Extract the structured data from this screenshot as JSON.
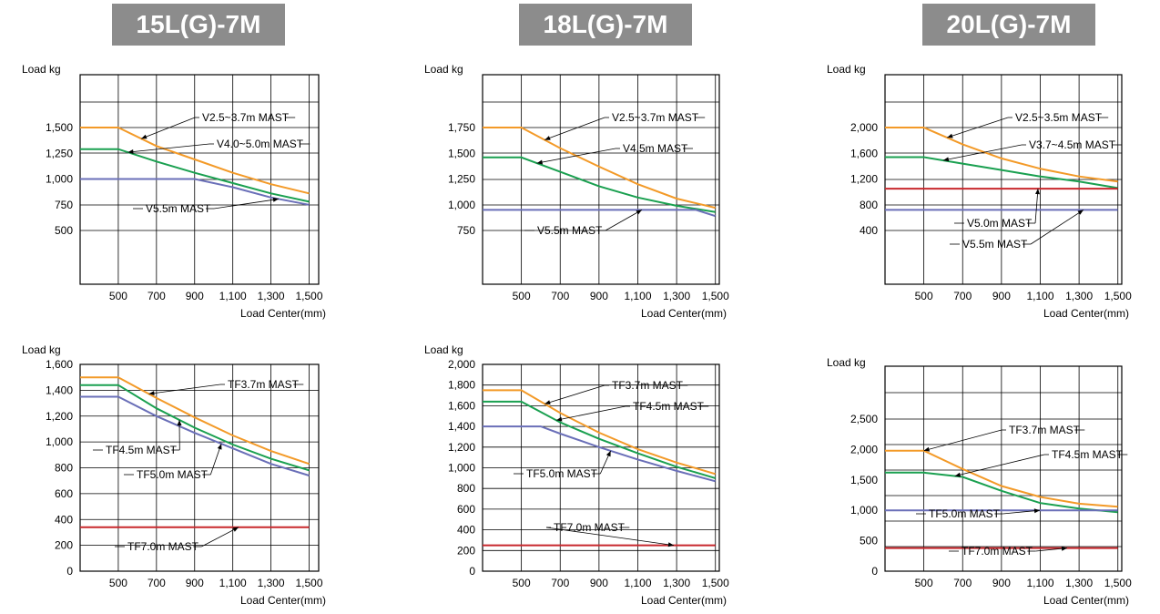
{
  "models": [
    "15L(G)-7M",
    "18L(G)-7M",
    "20L(G)-7M"
  ],
  "colors": {
    "orange": "#f39a28",
    "green": "#1aa050",
    "blue": "#6a6fb8",
    "red": "#c8282d",
    "grid": "#000000",
    "tab": "#8c8c8c"
  },
  "chart_data": [
    {
      "model": "15L(G)-7M",
      "type": "line",
      "ylabel": "Load   kg",
      "xlabel": "Load Center(mm)",
      "x_ticks": [
        "500",
        "700",
        "900",
        "1,100",
        "1,300",
        "1,500"
      ],
      "y_ticks": [
        {
          "v": 1500,
          "label": "1,500"
        },
        {
          "v": 1250,
          "label": "1,250"
        },
        {
          "v": 1000,
          "label": "1,000"
        },
        {
          "v": 750,
          "label": "750"
        },
        {
          "v": 500,
          "label": "500"
        }
      ],
      "series": [
        {
          "name": "V2.5~3.7m MAST",
          "color": "orange",
          "points": [
            [
              300,
              1500
            ],
            [
              500,
              1500
            ],
            [
              700,
              1320
            ],
            [
              900,
              1190
            ],
            [
              1100,
              1060
            ],
            [
              1300,
              950
            ],
            [
              1500,
              860
            ]
          ]
        },
        {
          "name": "V4.0~5.0m MAST",
          "color": "green",
          "points": [
            [
              300,
              1290
            ],
            [
              500,
              1290
            ],
            [
              700,
              1170
            ],
            [
              900,
              1060
            ],
            [
              1100,
              960
            ],
            [
              1300,
              860
            ],
            [
              1500,
              780
            ]
          ]
        },
        {
          "name": "V5.5m MAST",
          "color": "blue",
          "points": [
            [
              300,
              1000
            ],
            [
              900,
              1000
            ],
            [
              1100,
              920
            ],
            [
              1300,
              820
            ],
            [
              1500,
              750
            ]
          ]
        }
      ]
    },
    {
      "model": "18L(G)-7M",
      "type": "line",
      "ylabel": "Load   kg",
      "xlabel": "Load Center(mm)",
      "x_ticks": [
        "500",
        "700",
        "900",
        "1,100",
        "1,300",
        "1,500"
      ],
      "y_ticks": [
        {
          "v": 1750,
          "label": "1,750"
        },
        {
          "v": 1500,
          "label": "1,500"
        },
        {
          "v": 1250,
          "label": "1,250"
        },
        {
          "v": 1000,
          "label": "1,000"
        },
        {
          "v": 750,
          "label": "750"
        }
      ],
      "series": [
        {
          "name": "V2.5~3.7m MAST",
          "color": "orange",
          "points": [
            [
              300,
              1750
            ],
            [
              500,
              1750
            ],
            [
              700,
              1550
            ],
            [
              900,
              1370
            ],
            [
              1100,
              1200
            ],
            [
              1300,
              1060
            ],
            [
              1500,
              970
            ]
          ]
        },
        {
          "name": "V4.5m MAST",
          "color": "green",
          "points": [
            [
              300,
              1460
            ],
            [
              500,
              1460
            ],
            [
              700,
              1320
            ],
            [
              900,
              1180
            ],
            [
              1100,
              1070
            ],
            [
              1300,
              990
            ],
            [
              1500,
              930
            ]
          ]
        },
        {
          "name": "V5.5m MAST",
          "color": "blue",
          "points": [
            [
              300,
              950
            ],
            [
              1400,
              950
            ],
            [
              1500,
              890
            ]
          ]
        }
      ]
    },
    {
      "model": "20L(G)-7M",
      "type": "line",
      "ylabel": "Load   kg",
      "xlabel": "Load Center(mm)",
      "x_ticks": [
        "500",
        "700",
        "900",
        "1,100",
        "1,300",
        "1,500"
      ],
      "y_ticks": [
        {
          "v": 2000,
          "label": "2,000"
        },
        {
          "v": 1600,
          "label": "1,600"
        },
        {
          "v": 1200,
          "label": "1,200"
        },
        {
          "v": 800,
          "label": "800"
        },
        {
          "v": 400,
          "label": "400"
        }
      ],
      "series": [
        {
          "name": "V2.5~3.5m MAST",
          "color": "orange",
          "points": [
            [
              300,
              2000
            ],
            [
              500,
              2000
            ],
            [
              700,
              1740
            ],
            [
              900,
              1520
            ],
            [
              1100,
              1360
            ],
            [
              1300,
              1240
            ],
            [
              1500,
              1160
            ]
          ]
        },
        {
          "name": "V3.7~4.5m MAST",
          "color": "green",
          "points": [
            [
              300,
              1540
            ],
            [
              500,
              1540
            ],
            [
              700,
              1440
            ],
            [
              900,
              1340
            ],
            [
              1100,
              1240
            ],
            [
              1300,
              1160
            ],
            [
              1500,
              1060
            ]
          ]
        },
        {
          "name": "V5.0m MAST",
          "color": "red",
          "points": [
            [
              300,
              1050
            ],
            [
              1500,
              1050
            ]
          ]
        },
        {
          "name": "V5.5m MAST",
          "color": "blue",
          "points": [
            [
              300,
              720
            ],
            [
              1500,
              720
            ]
          ]
        }
      ]
    },
    {
      "model": "15L(G)-7M",
      "type": "line",
      "ylabel": "Load   kg",
      "xlabel": "Load Center(mm)",
      "x_ticks": [
        "500",
        "700",
        "900",
        "1,100",
        "1,300",
        "1,500"
      ],
      "y_ticks": [
        {
          "v": 1600,
          "label": "1,600"
        },
        {
          "v": 1400,
          "label": "1,400"
        },
        {
          "v": 1200,
          "label": "1,200"
        },
        {
          "v": 1000,
          "label": "1,000"
        },
        {
          "v": 800,
          "label": "800"
        },
        {
          "v": 600,
          "label": "600"
        },
        {
          "v": 400,
          "label": "400"
        },
        {
          "v": 200,
          "label": "200"
        },
        {
          "v": 0,
          "label": "0"
        }
      ],
      "series": [
        {
          "name": "TF3.7m MAST",
          "color": "orange",
          "points": [
            [
              300,
              1500
            ],
            [
              500,
              1500
            ],
            [
              700,
              1340
            ],
            [
              900,
              1190
            ],
            [
              1100,
              1050
            ],
            [
              1300,
              930
            ],
            [
              1500,
              830
            ]
          ]
        },
        {
          "name": "TF4.5m MAST",
          "color": "green",
          "points": [
            [
              300,
              1440
            ],
            [
              500,
              1440
            ],
            [
              700,
              1260
            ],
            [
              900,
              1110
            ],
            [
              1100,
              980
            ],
            [
              1300,
              870
            ],
            [
              1500,
              780
            ]
          ]
        },
        {
          "name": "TF5.0m MAST",
          "color": "blue",
          "points": [
            [
              300,
              1350
            ],
            [
              500,
              1350
            ],
            [
              700,
              1200
            ],
            [
              900,
              1070
            ],
            [
              1100,
              950
            ],
            [
              1300,
              830
            ],
            [
              1500,
              740
            ]
          ]
        },
        {
          "name": "TF7.0m MAST",
          "color": "red",
          "points": [
            [
              300,
              340
            ],
            [
              1500,
              340
            ]
          ]
        }
      ]
    },
    {
      "model": "18L(G)-7M",
      "type": "line",
      "ylabel": "Load   kg",
      "xlabel": "Load Center(mm)",
      "x_ticks": [
        "500",
        "700",
        "900",
        "1,100",
        "1,300",
        "1,500"
      ],
      "y_ticks": [
        {
          "v": 2000,
          "label": "2,000"
        },
        {
          "v": 1800,
          "label": "1,800"
        },
        {
          "v": 1600,
          "label": "1,600"
        },
        {
          "v": 1400,
          "label": "1,400"
        },
        {
          "v": 1200,
          "label": "1,200"
        },
        {
          "v": 1000,
          "label": "1,000"
        },
        {
          "v": 800,
          "label": "800"
        },
        {
          "v": 600,
          "label": "600"
        },
        {
          "v": 400,
          "label": "400"
        },
        {
          "v": 200,
          "label": "200"
        },
        {
          "v": 0,
          "label": "0"
        }
      ],
      "series": [
        {
          "name": "TF3.7m MAST",
          "color": "orange",
          "points": [
            [
              300,
              1750
            ],
            [
              500,
              1750
            ],
            [
              700,
              1530
            ],
            [
              900,
              1340
            ],
            [
              1100,
              1180
            ],
            [
              1300,
              1050
            ],
            [
              1500,
              940
            ]
          ]
        },
        {
          "name": "TF4.5m MAST",
          "color": "green",
          "points": [
            [
              300,
              1640
            ],
            [
              500,
              1640
            ],
            [
              700,
              1440
            ],
            [
              900,
              1280
            ],
            [
              1100,
              1140
            ],
            [
              1300,
              1010
            ],
            [
              1500,
              900
            ]
          ]
        },
        {
          "name": "TF5.0m MAST",
          "color": "blue",
          "points": [
            [
              300,
              1400
            ],
            [
              600,
              1400
            ],
            [
              700,
              1330
            ],
            [
              900,
              1200
            ],
            [
              1100,
              1080
            ],
            [
              1300,
              970
            ],
            [
              1500,
              870
            ]
          ]
        },
        {
          "name": "TF7.0m MAST",
          "color": "red",
          "points": [
            [
              300,
              250
            ],
            [
              1500,
              250
            ]
          ]
        }
      ]
    },
    {
      "model": "20L(G)-7M",
      "type": "line",
      "ylabel": "Load   kg",
      "xlabel": "Load Center(mm)",
      "x_ticks": [
        "500",
        "700",
        "900",
        "1,100",
        "1,300",
        "1,500"
      ],
      "y_ticks": [
        {
          "v": 2500,
          "label": "2,500"
        },
        {
          "v": 2000,
          "label": "2,000"
        },
        {
          "v": 1500,
          "label": "1,500"
        },
        {
          "v": 1000,
          "label": "1,000"
        },
        {
          "v": 500,
          "label": "500"
        },
        {
          "v": 0,
          "label": "0"
        }
      ],
      "series": [
        {
          "name": "TF3.7m MAST",
          "color": "orange",
          "points": [
            [
              300,
              1980
            ],
            [
              500,
              1980
            ],
            [
              700,
              1680
            ],
            [
              900,
              1400
            ],
            [
              1100,
              1220
            ],
            [
              1300,
              1110
            ],
            [
              1500,
              1060
            ]
          ]
        },
        {
          "name": "TF4.5m MAST",
          "color": "green",
          "points": [
            [
              300,
              1620
            ],
            [
              500,
              1620
            ],
            [
              700,
              1550
            ],
            [
              900,
              1320
            ],
            [
              1100,
              1120
            ],
            [
              1300,
              1030
            ],
            [
              1500,
              970
            ]
          ]
        },
        {
          "name": "TF5.0m MAST",
          "color": "blue",
          "points": [
            [
              300,
              1000
            ],
            [
              1500,
              1000
            ]
          ]
        },
        {
          "name": "TF7.0m MAST",
          "color": "red",
          "points": [
            [
              300,
              380
            ],
            [
              1500,
              380
            ]
          ]
        }
      ]
    }
  ]
}
